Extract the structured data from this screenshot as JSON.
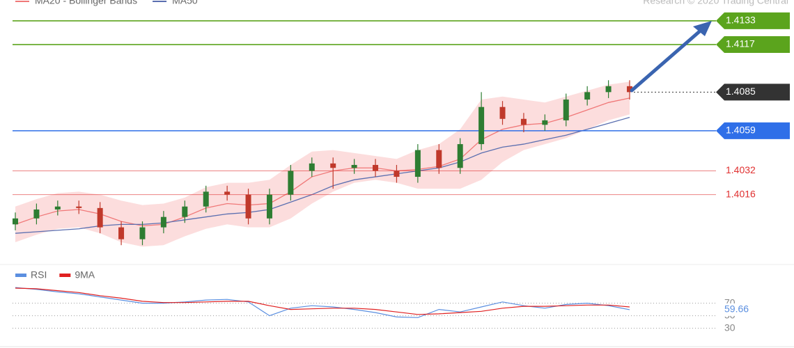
{
  "chart_data": [
    {
      "type": "candlestick",
      "source": "Research © 2020 Trading Central",
      "ylim": [
        1.3969,
        1.4147
      ],
      "up_color": "#2e7d32",
      "down_color": "#c0392b",
      "open": [
        1.3996,
        1.4,
        1.4006,
        1.4008,
        1.4007,
        1.3994,
        1.3986,
        1.3994,
        1.4001,
        1.4008,
        1.4018,
        1.4016,
        1.4,
        1.4016,
        1.4032,
        1.4037,
        1.4034,
        1.4036,
        1.4032,
        1.4028,
        1.4046,
        1.4034,
        1.405,
        1.4075,
        1.4067,
        1.4063,
        1.4066,
        1.408,
        1.4085,
        1.4089
      ],
      "high": [
        1.4004,
        1.401,
        1.4012,
        1.4012,
        1.4011,
        1.3998,
        1.3998,
        1.4005,
        1.4012,
        1.4022,
        1.4022,
        1.402,
        1.402,
        1.4036,
        1.4041,
        1.4041,
        1.404,
        1.404,
        1.4036,
        1.405,
        1.405,
        1.4054,
        1.4085,
        1.4079,
        1.4071,
        1.407,
        1.4084,
        1.4089,
        1.4093,
        1.4093
      ],
      "low": [
        1.3992,
        1.3996,
        1.4002,
        1.4003,
        1.399,
        1.3982,
        1.3982,
        1.399,
        1.3997,
        1.4004,
        1.4012,
        1.3996,
        1.3996,
        1.4012,
        1.4028,
        1.402,
        1.403,
        1.4028,
        1.4024,
        1.4024,
        1.403,
        1.403,
        1.4046,
        1.4063,
        1.4058,
        1.4059,
        1.4062,
        1.4076,
        1.4081,
        1.408
      ],
      "close": [
        1.4,
        1.4006,
        1.4008,
        1.4007,
        1.3994,
        1.3986,
        1.3994,
        1.4001,
        1.4008,
        1.4018,
        1.4016,
        1.4,
        1.4016,
        1.4032,
        1.4037,
        1.4034,
        1.4036,
        1.4032,
        1.4028,
        1.4046,
        1.4034,
        1.405,
        1.4075,
        1.4067,
        1.4063,
        1.4066,
        1.408,
        1.4085,
        1.4089,
        1.4085
      ],
      "series": [
        {
          "name": "MA20 - Bollinger Bands",
          "color": "#f07878",
          "band_color": "#fbd5d5",
          "values": [
            1.3996,
            1.4001,
            1.4005,
            1.4006,
            1.4003,
            1.3998,
            1.3995,
            1.3996,
            1.4001,
            1.4007,
            1.401,
            1.4009,
            1.401,
            1.4018,
            1.4028,
            1.4032,
            1.4034,
            1.4034,
            1.4032,
            1.4033,
            1.4035,
            1.404,
            1.4053,
            1.406,
            1.4063,
            1.4064,
            1.4068,
            1.4073,
            1.4078,
            1.4081
          ],
          "upper": [
            1.4008,
            1.4013,
            1.4017,
            1.4018,
            1.4016,
            1.4012,
            1.4009,
            1.401,
            1.4014,
            1.4021,
            1.4024,
            1.4024,
            1.4026,
            1.4036,
            1.4045,
            1.4046,
            1.4044,
            1.4042,
            1.404,
            1.4046,
            1.405,
            1.406,
            1.408,
            1.4082,
            1.408,
            1.4078,
            1.4082,
            1.4086,
            1.409,
            1.4092
          ],
          "lower": [
            1.3984,
            1.3989,
            1.3993,
            1.3994,
            1.399,
            1.3984,
            1.3981,
            1.3982,
            1.3988,
            1.3993,
            1.3996,
            1.3994,
            1.3994,
            1.4,
            1.401,
            1.4018,
            1.4024,
            1.4026,
            1.4024,
            1.402,
            1.402,
            1.402,
            1.4026,
            1.4038,
            1.4046,
            1.405,
            1.4054,
            1.406,
            1.4066,
            1.407
          ]
        },
        {
          "name": "MA50",
          "color": "#5b6fb0",
          "values": [
            1.399,
            1.3991,
            1.3992,
            1.3993,
            1.3995,
            1.3996,
            1.3996,
            1.3997,
            1.3999,
            1.4001,
            1.4003,
            1.4004,
            1.4006,
            1.4011,
            1.4016,
            1.4022,
            1.4026,
            1.4028,
            1.403,
            1.4032,
            1.4034,
            1.4038,
            1.4044,
            1.4048,
            1.405,
            1.4053,
            1.4056,
            1.406,
            1.4064,
            1.4068
          ]
        }
      ],
      "levels": [
        {
          "value": 1.4133,
          "color": "#5ba41d",
          "style": "solid",
          "label_style": "box"
        },
        {
          "value": 1.4117,
          "color": "#5ba41d",
          "style": "solid",
          "label_style": "box"
        },
        {
          "value": 1.4085,
          "color": "#333333",
          "style": "dotted",
          "label_style": "box"
        },
        {
          "value": 1.4059,
          "color": "#2f6fe8",
          "style": "solid",
          "label_style": "box"
        },
        {
          "value": 1.4032,
          "color": "#e03030",
          "style": "solid",
          "label_style": "text"
        },
        {
          "value": 1.4016,
          "color": "#e03030",
          "style": "solid",
          "label_style": "text"
        }
      ]
    },
    {
      "type": "line",
      "ylim": [
        4,
        104
      ],
      "yticks": [
        30,
        50,
        70
      ],
      "grid": true,
      "series": [
        {
          "name": "RSI",
          "color": "#5b8fe0",
          "values": [
            95,
            92,
            88,
            85,
            80,
            75,
            70,
            70,
            72,
            75,
            76,
            72,
            50,
            62,
            66,
            64,
            60,
            55,
            48,
            47,
            60,
            56,
            64,
            72,
            66,
            62,
            68,
            70,
            66,
            59.66
          ]
        },
        {
          "name": "9MA",
          "color": "#e02020",
          "values": [
            94,
            93,
            90,
            87,
            82,
            78,
            73,
            71,
            71,
            72,
            73,
            73,
            66,
            60,
            61,
            62,
            62,
            60,
            56,
            52,
            53,
            55,
            57,
            62,
            65,
            65,
            66,
            67,
            67,
            64
          ]
        }
      ]
    }
  ]
}
